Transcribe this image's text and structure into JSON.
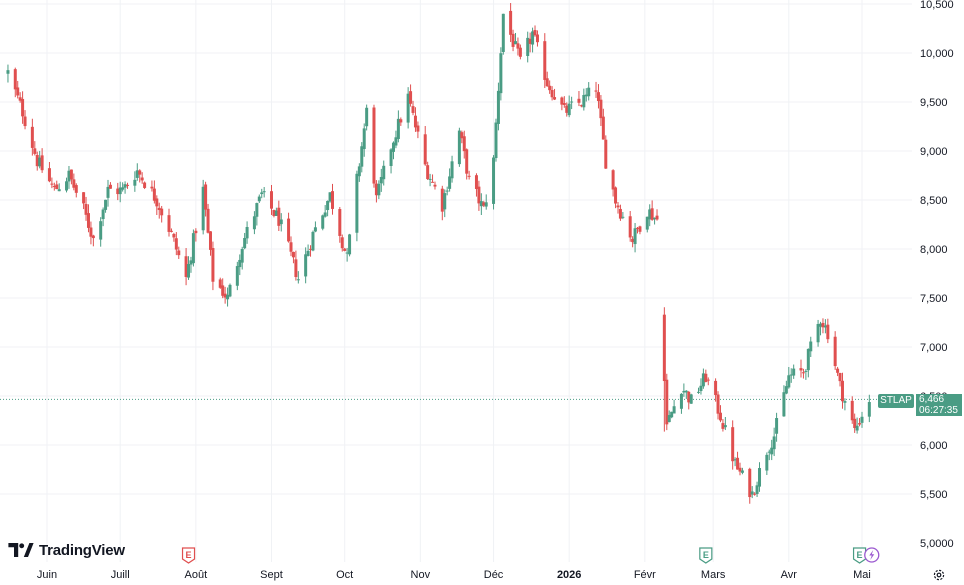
{
  "brand": {
    "name": "TradingView"
  },
  "symbol": {
    "ticker": "STLAP",
    "last_price": "6,466",
    "countdown": "06:27:35",
    "up_color": "#4a9c84",
    "down_color": "#e04f4f"
  },
  "events": [
    {
      "kind": "earnings",
      "letter": "E",
      "date": "2025-07-29",
      "color": "#e04f4f"
    },
    {
      "kind": "earnings",
      "letter": "E",
      "date": "2026-02-26",
      "color": "#4a9c84"
    },
    {
      "kind": "earnings",
      "letter": "E",
      "date": "2026-04-30",
      "color": "#4a9c84"
    },
    {
      "kind": "split",
      "icon": "lightning-icon",
      "date": "2026-05-05",
      "color": "#9b59d0"
    }
  ],
  "chart_data": {
    "type": "candlestick",
    "title": "",
    "y_axis": {
      "min": 5000,
      "max": 10500,
      "ticks": [
        "10,500",
        "10,000",
        "9,500",
        "9,000",
        "8,500",
        "8,000",
        "7,500",
        "7,000",
        "6,500",
        "6,000",
        "5,500",
        "5,0000"
      ],
      "position": "right"
    },
    "x_axis": {
      "labels": [
        {
          "text": "Juin",
          "date": "2025-06-01",
          "bold": false
        },
        {
          "text": "Juill",
          "date": "2025-07-01",
          "bold": false
        },
        {
          "text": "Août",
          "date": "2025-08-01",
          "bold": false
        },
        {
          "text": "Sept",
          "date": "2025-09-01",
          "bold": false
        },
        {
          "text": "Oct",
          "date": "2025-10-01",
          "bold": false
        },
        {
          "text": "Nov",
          "date": "2025-11-01",
          "bold": false
        },
        {
          "text": "Déc",
          "date": "2025-12-01",
          "bold": false
        },
        {
          "text": "2026",
          "date": "2026-01-01",
          "bold": true
        },
        {
          "text": "Févr",
          "date": "2026-02-01",
          "bold": false
        },
        {
          "text": "Mars",
          "date": "2026-03-01",
          "bold": false
        },
        {
          "text": "Avr",
          "date": "2026-04-01",
          "bold": false
        },
        {
          "text": "Mai",
          "date": "2026-05-01",
          "bold": false
        }
      ]
    },
    "grid": true,
    "last_price_line": 6466,
    "close_waypoints": [
      [
        "2025-05-16",
        9800
      ],
      [
        "2025-05-22",
        9400
      ],
      [
        "2025-05-28",
        8900
      ],
      [
        "2025-06-04",
        8600
      ],
      [
        "2025-06-10",
        8750
      ],
      [
        "2025-06-16",
        8400
      ],
      [
        "2025-06-20",
        8100
      ],
      [
        "2025-06-26",
        8600
      ],
      [
        "2025-07-02",
        8600
      ],
      [
        "2025-07-08",
        8800
      ],
      [
        "2025-07-16",
        8500
      ],
      [
        "2025-07-22",
        8150
      ],
      [
        "2025-07-28",
        7700
      ],
      [
        "2025-08-04",
        8600
      ],
      [
        "2025-08-08",
        7700
      ],
      [
        "2025-08-14",
        7500
      ],
      [
        "2025-08-20",
        8050
      ],
      [
        "2025-08-28",
        8550
      ],
      [
        "2025-09-04",
        8300
      ],
      [
        "2025-09-12",
        7700
      ],
      [
        "2025-09-18",
        8150
      ],
      [
        "2025-09-25",
        8550
      ],
      [
        "2025-10-02",
        7900
      ],
      [
        "2025-10-06",
        8700
      ],
      [
        "2025-10-10",
        9400
      ],
      [
        "2025-10-14",
        8500
      ],
      [
        "2025-10-20",
        9050
      ],
      [
        "2025-10-27",
        9550
      ],
      [
        "2025-11-03",
        8850
      ],
      [
        "2025-11-10",
        8450
      ],
      [
        "2025-11-17",
        9200
      ],
      [
        "2025-11-21",
        8700
      ],
      [
        "2025-11-27",
        8400
      ],
      [
        "2025-12-01",
        8900
      ],
      [
        "2025-12-05",
        10400
      ],
      [
        "2025-12-12",
        9900
      ],
      [
        "2025-12-17",
        10200
      ],
      [
        "2025-12-23",
        9700
      ],
      [
        "2025-12-30",
        9400
      ],
      [
        "2026-01-06",
        9500
      ],
      [
        "2026-01-12",
        9650
      ],
      [
        "2026-01-16",
        8900
      ],
      [
        "2026-01-20",
        8500
      ],
      [
        "2026-01-27",
        8100
      ],
      [
        "2026-02-02",
        8400
      ],
      [
        "2026-02-06",
        8300
      ],
      [
        "2026-02-10",
        6200
      ],
      [
        "2026-02-16",
        6600
      ],
      [
        "2026-02-20",
        6450
      ],
      [
        "2026-02-26",
        6700
      ],
      [
        "2026-03-04",
        6300
      ],
      [
        "2026-03-10",
        5800
      ],
      [
        "2026-03-17",
        5500
      ],
      [
        "2026-03-23",
        5950
      ],
      [
        "2026-03-26",
        6100
      ],
      [
        "2026-04-01",
        6700
      ],
      [
        "2026-04-07",
        6750
      ],
      [
        "2026-04-14",
        7300
      ],
      [
        "2026-04-17",
        7150
      ],
      [
        "2026-04-22",
        6600
      ],
      [
        "2026-04-28",
        6150
      ],
      [
        "2026-05-04",
        6466
      ]
    ]
  }
}
